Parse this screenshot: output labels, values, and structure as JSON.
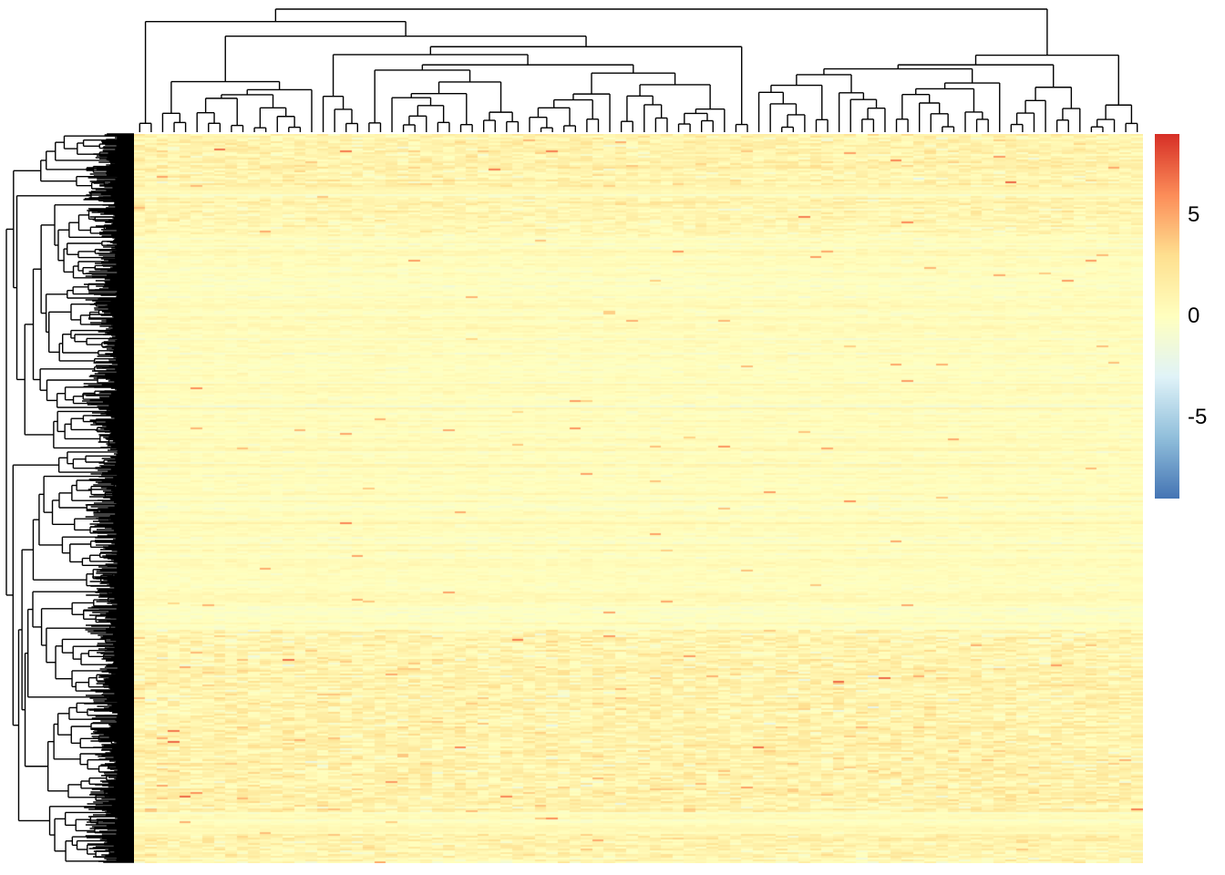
{
  "chart_data": {
    "type": "heatmap",
    "title": "",
    "xlabel": "",
    "ylabel": "",
    "n_columns": 88,
    "row_dendrogram": true,
    "column_dendrogram": true,
    "color_scale": {
      "min": -9,
      "max": 9,
      "colors": [
        "#4575B4",
        "#91BFDB",
        "#E0F3F8",
        "#FFFFBF",
        "#FEE090",
        "#FC8D59",
        "#D73027"
      ],
      "ticks": [
        {
          "value": 5,
          "label": "5"
        },
        {
          "value": 0,
          "label": "0"
        },
        {
          "value": -5,
          "label": "-5"
        }
      ]
    },
    "row_bands": [
      {
        "from": 0.0,
        "to": 0.072,
        "level": 1.2,
        "spread": 1.4
      },
      {
        "from": 0.072,
        "to": 0.085,
        "level": 0.3,
        "spread": 0.3
      },
      {
        "from": 0.085,
        "to": 0.14,
        "level": 0.9,
        "spread": 1.2
      },
      {
        "from": 0.14,
        "to": 0.68,
        "level": 0.2,
        "spread": 0.5
      },
      {
        "from": 0.68,
        "to": 0.93,
        "level": 1.1,
        "spread": 1.6
      },
      {
        "from": 0.93,
        "to": 0.96,
        "level": 0.4,
        "spread": 0.4
      },
      {
        "from": 0.96,
        "to": 1.0,
        "level": 1.0,
        "spread": 1.4
      }
    ]
  }
}
